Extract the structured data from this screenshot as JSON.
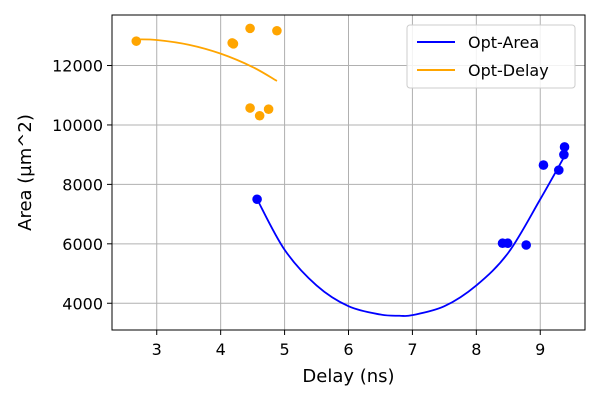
{
  "chart_data": {
    "type": "scatter",
    "title": "",
    "xlabel": "Delay (ns)",
    "ylabel": "Area (µm^2)",
    "xlim": [
      2.3,
      9.7
    ],
    "ylim": [
      3100,
      13700
    ],
    "xticks": [
      3,
      4,
      5,
      6,
      7,
      8,
      9
    ],
    "yticks": [
      4000,
      6000,
      8000,
      10000,
      12000
    ],
    "grid": true,
    "legend_position": "top-right",
    "series": [
      {
        "name": "Opt-Area",
        "color": "#0000ff",
        "points": [
          {
            "x": 4.57,
            "y": 7500
          },
          {
            "x": 8.41,
            "y": 6020
          },
          {
            "x": 8.49,
            "y": 6020
          },
          {
            "x": 8.78,
            "y": 5960
          },
          {
            "x": 9.05,
            "y": 8650
          },
          {
            "x": 9.29,
            "y": 8480
          },
          {
            "x": 9.37,
            "y": 9000
          },
          {
            "x": 9.38,
            "y": 9260
          }
        ],
        "fit": [
          {
            "x": 4.57,
            "y": 7500
          },
          {
            "x": 5.0,
            "y": 5800
          },
          {
            "x": 5.5,
            "y": 4600
          },
          {
            "x": 6.0,
            "y": 3900
          },
          {
            "x": 6.5,
            "y": 3620
          },
          {
            "x": 6.8,
            "y": 3580
          },
          {
            "x": 7.0,
            "y": 3600
          },
          {
            "x": 7.5,
            "y": 3900
          },
          {
            "x": 8.0,
            "y": 4600
          },
          {
            "x": 8.5,
            "y": 5700
          },
          {
            "x": 9.0,
            "y": 7500
          },
          {
            "x": 9.38,
            "y": 8950
          }
        ]
      },
      {
        "name": "Opt-Delay",
        "color": "#ffa500",
        "points": [
          {
            "x": 2.68,
            "y": 12820
          },
          {
            "x": 4.18,
            "y": 12760
          },
          {
            "x": 4.2,
            "y": 12730
          },
          {
            "x": 4.46,
            "y": 13250
          },
          {
            "x": 4.88,
            "y": 13170
          },
          {
            "x": 4.46,
            "y": 10570
          },
          {
            "x": 4.61,
            "y": 10310
          },
          {
            "x": 4.75,
            "y": 10530
          }
        ],
        "fit": [
          {
            "x": 2.68,
            "y": 12880
          },
          {
            "x": 3.0,
            "y": 12860
          },
          {
            "x": 3.5,
            "y": 12700
          },
          {
            "x": 4.0,
            "y": 12400
          },
          {
            "x": 4.5,
            "y": 11950
          },
          {
            "x": 4.88,
            "y": 11480
          }
        ]
      }
    ]
  }
}
